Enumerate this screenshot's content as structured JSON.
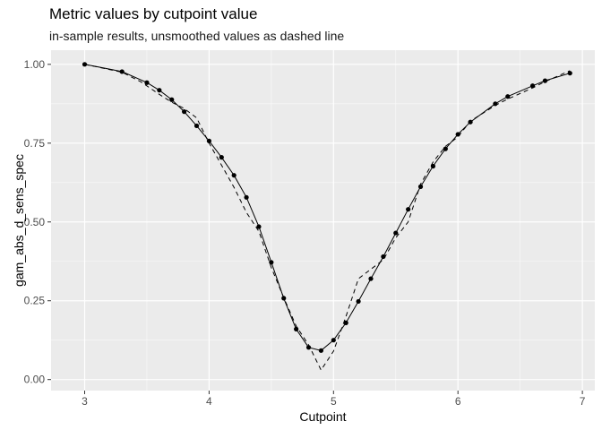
{
  "chart_data": {
    "type": "line",
    "title": "Metric values by cutpoint value",
    "subtitle": "in-sample results, unsmoothed values as dashed line",
    "xlabel": "Cutpoint",
    "ylabel": "gam_abs_d_sens_spec",
    "xlim": [
      2.73,
      7.1
    ],
    "ylim": [
      -0.035,
      1.045
    ],
    "x_ticks": [
      3,
      4,
      5,
      6,
      7
    ],
    "x_tick_labels": [
      "3",
      "4",
      "5",
      "6",
      "7"
    ],
    "y_ticks": [
      0,
      0.25,
      0.5,
      0.75,
      1
    ],
    "y_tick_labels": [
      "0.00",
      "0.25",
      "0.50",
      "0.75",
      "1.00"
    ],
    "grid": true,
    "legend": "none",
    "series": [
      {
        "style": "solid-with-points",
        "x": [
          3.0,
          3.3,
          3.5,
          3.6,
          3.7,
          3.8,
          3.9,
          4.0,
          4.1,
          4.2,
          4.3,
          4.4,
          4.5,
          4.6,
          4.7,
          4.8,
          4.9,
          5.0,
          5.1,
          5.2,
          5.3,
          5.4,
          5.5,
          5.6,
          5.7,
          5.8,
          5.9,
          6.0,
          6.1,
          6.3,
          6.4,
          6.6,
          6.7,
          6.9
        ],
        "y": [
          1.0,
          0.977,
          0.942,
          0.918,
          0.888,
          0.85,
          0.805,
          0.757,
          0.705,
          0.648,
          0.578,
          0.485,
          0.372,
          0.258,
          0.16,
          0.102,
          0.092,
          0.125,
          0.18,
          0.248,
          0.32,
          0.39,
          0.465,
          0.54,
          0.612,
          0.677,
          0.732,
          0.778,
          0.817,
          0.875,
          0.898,
          0.932,
          0.948,
          0.972
        ]
      },
      {
        "style": "dashed",
        "x": [
          3.0,
          3.3,
          3.45,
          3.6,
          3.7,
          3.8,
          3.9,
          4.0,
          4.1,
          4.2,
          4.3,
          4.4,
          4.5,
          4.6,
          4.7,
          4.8,
          4.9,
          5.0,
          5.1,
          5.2,
          5.3,
          5.4,
          5.5,
          5.6,
          5.7,
          5.8,
          5.9,
          6.0,
          6.1,
          6.3,
          6.4,
          6.6,
          6.7,
          6.9
        ],
        "y": [
          1.0,
          0.975,
          0.945,
          0.905,
          0.88,
          0.86,
          0.83,
          0.75,
          0.68,
          0.61,
          0.53,
          0.47,
          0.355,
          0.26,
          0.17,
          0.11,
          0.03,
          0.09,
          0.2,
          0.32,
          0.35,
          0.38,
          0.45,
          0.5,
          0.62,
          0.69,
          0.74,
          0.77,
          0.82,
          0.87,
          0.89,
          0.925,
          0.945,
          0.98
        ]
      }
    ]
  }
}
